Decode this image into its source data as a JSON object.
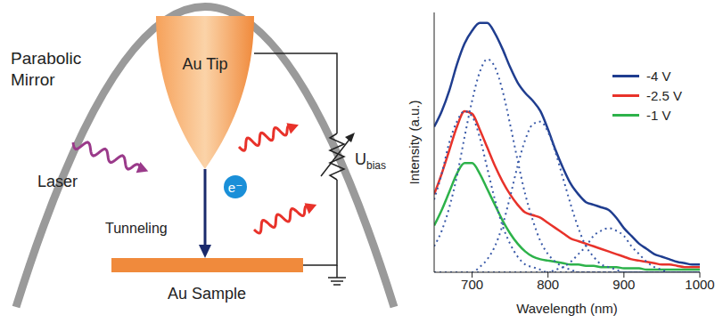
{
  "chart_data": {
    "type": "line",
    "xlabel": "Wavelength (nm)",
    "ylabel": "Intensity (a.u.)",
    "x": [
      650,
      660,
      670,
      680,
      690,
      700,
      710,
      720,
      730,
      740,
      750,
      760,
      770,
      780,
      790,
      800,
      810,
      820,
      830,
      840,
      850,
      860,
      870,
      880,
      890,
      900,
      910,
      920,
      930,
      940,
      950,
      960,
      970,
      980,
      990,
      1000
    ],
    "xlim": [
      650,
      1000
    ],
    "xticks": [
      700,
      800,
      900,
      1000
    ],
    "ylim": [
      0,
      1
    ],
    "tick_labels": "x",
    "legend": "upper right",
    "series": [
      {
        "name": "-4 V",
        "color": "#1f3d8f",
        "line_style": "solid",
        "values": [
          0.56,
          0.62,
          0.7,
          0.8,
          0.88,
          0.93,
          0.96,
          0.96,
          0.92,
          0.86,
          0.79,
          0.73,
          0.69,
          0.66,
          0.62,
          0.55,
          0.47,
          0.4,
          0.34,
          0.3,
          0.27,
          0.26,
          0.25,
          0.24,
          0.21,
          0.17,
          0.14,
          0.11,
          0.09,
          0.07,
          0.06,
          0.05,
          0.04,
          0.035,
          0.03,
          0.03
        ]
      },
      {
        "name": "-2.5 V",
        "color": "#e8322a",
        "line_style": "solid",
        "values": [
          0.3,
          0.38,
          0.47,
          0.56,
          0.62,
          0.61,
          0.55,
          0.48,
          0.41,
          0.35,
          0.3,
          0.26,
          0.23,
          0.22,
          0.21,
          0.19,
          0.17,
          0.15,
          0.13,
          0.12,
          0.11,
          0.1,
          0.09,
          0.08,
          0.07,
          0.06,
          0.05,
          0.045,
          0.04,
          0.035,
          0.03,
          0.03,
          0.025,
          0.02,
          0.02,
          0.02
        ]
      },
      {
        "name": "-1 V",
        "color": "#2db24a",
        "line_style": "solid",
        "values": [
          0.18,
          0.24,
          0.31,
          0.38,
          0.42,
          0.42,
          0.38,
          0.32,
          0.26,
          0.2,
          0.15,
          0.11,
          0.08,
          0.06,
          0.05,
          0.045,
          0.04,
          0.035,
          0.03,
          0.03,
          0.025,
          0.025,
          0.02,
          0.02,
          0.02,
          0.015,
          0.015,
          0.015,
          0.01,
          0.01,
          0.01,
          0.01,
          0.01,
          0.01,
          0.01,
          0.01
        ]
      },
      {
        "color": "#3a5aa8",
        "line_style": "dotted",
        "values": [
          0.28,
          0.38,
          0.5,
          0.58,
          0.62,
          0.6,
          0.52,
          0.4,
          0.28,
          0.18,
          0.11,
          0.06,
          0.03,
          0.02,
          0.01,
          0,
          0,
          0,
          0,
          0,
          0,
          0,
          0,
          0,
          0,
          0,
          0,
          0,
          0,
          0,
          0,
          0,
          0,
          0,
          0,
          0
        ]
      },
      {
        "color": "#3a5aa8",
        "line_style": "dotted",
        "values": [
          0.1,
          0.16,
          0.25,
          0.37,
          0.52,
          0.66,
          0.77,
          0.82,
          0.79,
          0.7,
          0.57,
          0.43,
          0.3,
          0.2,
          0.12,
          0.07,
          0.04,
          0.02,
          0.01,
          0,
          0,
          0,
          0,
          0,
          0,
          0,
          0,
          0,
          0,
          0,
          0,
          0,
          0,
          0,
          0,
          0
        ]
      },
      {
        "color": "#3a5aa8",
        "line_style": "dotted",
        "values": [
          0,
          0,
          0,
          0,
          0,
          0,
          0.02,
          0.05,
          0.1,
          0.18,
          0.29,
          0.41,
          0.51,
          0.57,
          0.58,
          0.54,
          0.46,
          0.36,
          0.26,
          0.17,
          0.1,
          0.06,
          0.03,
          0.02,
          0.01,
          0,
          0,
          0,
          0,
          0,
          0,
          0,
          0,
          0,
          0,
          0
        ]
      },
      {
        "color": "#3a5aa8",
        "line_style": "dotted",
        "values": [
          0,
          0,
          0,
          0,
          0,
          0,
          0,
          0,
          0,
          0,
          0,
          0,
          0,
          0,
          0,
          0,
          0.01,
          0.02,
          0.04,
          0.07,
          0.1,
          0.14,
          0.16,
          0.17,
          0.16,
          0.14,
          0.1,
          0.07,
          0.04,
          0.02,
          0.01,
          0,
          0,
          0,
          0,
          0
        ]
      }
    ]
  },
  "diagram": {
    "labels": {
      "mirror": "Parabolic Mirror",
      "tip": "Au Tip",
      "laser": "Laser",
      "tunneling": "Tunneling",
      "electron": "e⁻",
      "bias": "U",
      "bias_subscript": "bias",
      "sample": "Au Sample"
    }
  }
}
